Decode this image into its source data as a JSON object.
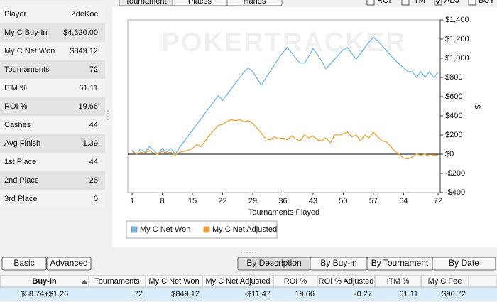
{
  "tabs": [
    "Tournament",
    "Places",
    "Hands"
  ],
  "options": [
    {
      "label": "ROI",
      "checked": false
    },
    {
      "label": "ITM",
      "checked": false
    },
    {
      "label": "ADJ",
      "checked": true
    },
    {
      "label": "BUY",
      "checked": false
    }
  ],
  "stats": [
    {
      "label": "Player",
      "value": "ZdeKoc"
    },
    {
      "label": "My C Buy-In",
      "value": "$4,320.00"
    },
    {
      "label": "My C Net Won",
      "value": "$849.12",
      "color": "#1f9a1f"
    },
    {
      "label": "Tournaments",
      "value": "72"
    },
    {
      "label": "ITM %",
      "value": "61.11"
    },
    {
      "label": "ROI %",
      "value": "19.66"
    },
    {
      "label": "Cashes",
      "value": "44"
    },
    {
      "label": "Avg Finish",
      "value": "1.39"
    },
    {
      "label": "1st Place",
      "value": "44"
    },
    {
      "label": "2nd Place",
      "value": "28"
    },
    {
      "label": "3rd Place",
      "value": "0"
    }
  ],
  "chart_data": {
    "type": "line",
    "watermark": "POKERTRACKER",
    "x_label": "Tournaments Played",
    "y_label": "$",
    "x": [
      1,
      2,
      3,
      4,
      5,
      6,
      7,
      8,
      9,
      10,
      11,
      12,
      13,
      14,
      15,
      16,
      17,
      18,
      19,
      20,
      21,
      22,
      23,
      24,
      25,
      26,
      27,
      28,
      29,
      30,
      31,
      32,
      33,
      34,
      35,
      36,
      37,
      38,
      39,
      40,
      41,
      42,
      43,
      44,
      45,
      46,
      47,
      48,
      49,
      50,
      51,
      52,
      53,
      54,
      55,
      56,
      57,
      58,
      59,
      60,
      61,
      62,
      63,
      64,
      65,
      66,
      67,
      68,
      69,
      70,
      71,
      72
    ],
    "series": [
      {
        "name": "My C Net Won",
        "color": "#6fb8e6",
        "values": [
          40,
          0,
          60,
          20,
          80,
          40,
          0,
          60,
          20,
          60,
          0,
          70,
          130,
          190,
          250,
          310,
          370,
          430,
          490,
          550,
          610,
          560,
          620,
          680,
          740,
          800,
          860,
          900,
          860,
          790,
          720,
          790,
          860,
          930,
          1000,
          1060,
          1110,
          1060,
          1000,
          950,
          950,
          1020,
          1100,
          1040,
          970,
          890,
          940,
          990,
          1040,
          1090,
          1110,
          1050,
          990,
          1050,
          1110,
          1170,
          1220,
          1180,
          1130,
          1080,
          1030,
          980,
          940,
          900,
          860,
          860,
          800,
          860,
          800,
          860,
          800,
          849.12
        ]
      },
      {
        "name": "My C Net Adjusted",
        "color": "#f0a030",
        "values": [
          30,
          0,
          20,
          10,
          40,
          10,
          0,
          30,
          10,
          20,
          -10,
          20,
          30,
          40,
          60,
          100,
          80,
          140,
          200,
          250,
          300,
          310,
          340,
          360,
          350,
          360,
          340,
          350,
          320,
          270,
          220,
          160,
          150,
          180,
          160,
          170,
          150,
          190,
          160,
          140,
          200,
          170,
          190,
          150,
          140,
          170,
          120,
          200,
          200,
          210,
          230,
          180,
          200,
          140,
          200,
          170,
          230,
          180,
          140,
          130,
          80,
          30,
          0,
          -40,
          -50,
          -30,
          0,
          -10,
          0,
          -20,
          -10,
          -11.47
        ]
      }
    ],
    "xlim": [
      0,
      72.5
    ],
    "xticks": [
      1,
      8,
      15,
      22,
      29,
      36,
      43,
      50,
      57,
      64,
      72
    ],
    "ylim": [
      -400,
      1400
    ],
    "yticks": [
      {
        "value": -400,
        "label": "-$400"
      },
      {
        "value": -200,
        "label": "-$200"
      },
      {
        "value": 0,
        "label": "$0"
      },
      {
        "value": 200,
        "label": "$200"
      },
      {
        "value": 400,
        "label": "$400"
      },
      {
        "value": 600,
        "label": "$600"
      },
      {
        "value": 800,
        "label": "$800"
      },
      {
        "value": 1000,
        "label": "$1,000"
      },
      {
        "value": 1200,
        "label": "$1,200"
      },
      {
        "value": 1400,
        "label": "$1,400"
      }
    ],
    "zero_line": true,
    "legend": "bottom-left"
  },
  "view_buttons": [
    "Basic",
    "Advanced"
  ],
  "sort_buttons": [
    {
      "label": "By Description",
      "selected": true
    },
    {
      "label": "By Buy-in",
      "selected": false
    },
    {
      "label": "By Tournament",
      "selected": false
    },
    {
      "label": "By Date",
      "selected": false
    }
  ],
  "table": {
    "columns": [
      "Buy-In",
      "Tournaments",
      "My C Net Won",
      "My C Net Adjusted",
      "ROI %",
      "ROI % Adjusted",
      "ITM %",
      "My C Fee"
    ],
    "sort_column": 0,
    "rows": [
      [
        "$58.74+$1.26",
        "72",
        "$849.12",
        "-$11.47",
        "19.66",
        "-0.27",
        "61.11",
        "$90.72"
      ]
    ],
    "cell_colors": [
      [
        null,
        null,
        "#1f9a1f",
        "#d42020",
        null,
        null,
        null,
        null
      ]
    ]
  }
}
